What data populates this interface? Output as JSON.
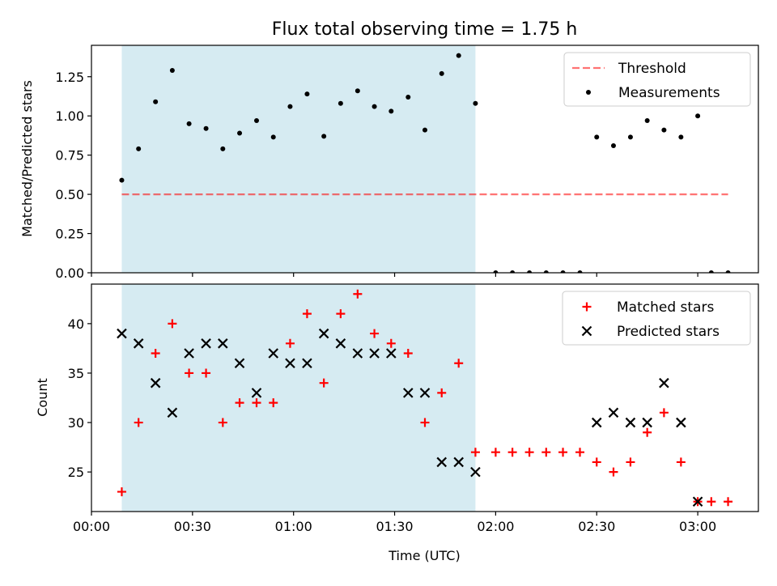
{
  "chart_data": [
    {
      "type": "scatter",
      "title": "Flux total observing time = 1.75 h",
      "xlabel": "",
      "ylabel": "Matched/Predicted stars",
      "xlim": [
        0,
        3.3
      ],
      "ylim": [
        0,
        1.45
      ],
      "yticks": [
        0.0,
        0.25,
        0.5,
        0.75,
        1.0,
        1.25
      ],
      "ytick_labels": [
        "0.00",
        "0.25",
        "0.50",
        "0.75",
        "1.00",
        "1.25"
      ],
      "highlight_span": {
        "from": 0.15,
        "to": 1.9,
        "color": "#add8e6"
      },
      "legend_position": "top-right",
      "threshold": {
        "name": "Threshold",
        "value": 0.5,
        "x_from": 0.15,
        "x_to": 3.15,
        "color": "#ff0000"
      },
      "series": [
        {
          "name": "Measurements",
          "color": "#000000",
          "marker": "dot",
          "x": [
            0.15,
            0.233,
            0.317,
            0.4,
            0.483,
            0.567,
            0.65,
            0.733,
            0.817,
            0.9,
            0.983,
            1.067,
            1.15,
            1.233,
            1.317,
            1.4,
            1.483,
            1.567,
            1.65,
            1.733,
            1.817,
            1.9,
            2.0,
            2.083,
            2.167,
            2.25,
            2.333,
            2.417,
            2.5,
            2.583,
            2.667,
            2.75,
            2.833,
            2.917,
            3.0,
            3.067,
            3.15
          ],
          "y": [
            0.59,
            0.79,
            1.09,
            1.29,
            0.95,
            0.92,
            0.79,
            0.89,
            0.97,
            0.865,
            1.06,
            1.14,
            0.87,
            1.08,
            1.16,
            1.06,
            1.03,
            1.12,
            0.91,
            1.27,
            1.385,
            1.08,
            0,
            0,
            0,
            0,
            0,
            0,
            0.865,
            0.81,
            0.865,
            0.97,
            0.91,
            0.865,
            1.0,
            0,
            0
          ]
        }
      ]
    },
    {
      "type": "scatter",
      "title": "",
      "xlabel": "Time (UTC)",
      "ylabel": "Count",
      "xlim": [
        0,
        3.3
      ],
      "ylim": [
        21,
        44
      ],
      "yticks": [
        25,
        30,
        35,
        40
      ],
      "ytick_labels": [
        "25",
        "30",
        "35",
        "40"
      ],
      "xticks": [
        0,
        0.5,
        1.0,
        1.5,
        2.0,
        2.5,
        3.0
      ],
      "xtick_labels": [
        "00:00",
        "00:30",
        "01:00",
        "01:30",
        "02:00",
        "02:30",
        "03:00"
      ],
      "highlight_span": {
        "from": 0.15,
        "to": 1.9,
        "color": "#add8e6"
      },
      "legend_position": "top-right",
      "series": [
        {
          "name": "Matched stars",
          "color": "#ff0000",
          "marker": "plus",
          "x": [
            0.15,
            0.233,
            0.317,
            0.4,
            0.483,
            0.567,
            0.65,
            0.733,
            0.817,
            0.9,
            0.983,
            1.067,
            1.15,
            1.233,
            1.317,
            1.4,
            1.483,
            1.567,
            1.65,
            1.733,
            1.817,
            1.9,
            2.0,
            2.083,
            2.167,
            2.25,
            2.333,
            2.417,
            2.5,
            2.583,
            2.667,
            2.75,
            2.833,
            2.917,
            3.0,
            3.067,
            3.15
          ],
          "y": [
            23,
            30,
            37,
            40,
            35,
            35,
            30,
            32,
            32,
            32,
            38,
            41,
            34,
            41,
            43,
            39,
            38,
            37,
            30,
            33,
            36,
            27,
            27,
            27,
            27,
            27,
            27,
            27,
            26,
            25,
            26,
            29,
            31,
            26,
            22,
            22,
            22
          ]
        },
        {
          "name": "Predicted stars",
          "color": "#000000",
          "marker": "x",
          "x": [
            0.15,
            0.233,
            0.317,
            0.4,
            0.483,
            0.567,
            0.65,
            0.733,
            0.817,
            0.9,
            0.983,
            1.067,
            1.15,
            1.233,
            1.317,
            1.4,
            1.483,
            1.567,
            1.65,
            1.733,
            1.817,
            1.9,
            2.5,
            2.583,
            2.667,
            2.75,
            2.833,
            2.917,
            3.0
          ],
          "y": [
            39,
            38,
            34,
            31,
            37,
            38,
            38,
            36,
            33,
            37,
            36,
            36,
            39,
            38,
            37,
            37,
            37,
            33,
            33,
            26,
            26,
            25,
            30,
            31,
            30,
            30,
            34,
            30,
            22
          ]
        }
      ]
    }
  ]
}
